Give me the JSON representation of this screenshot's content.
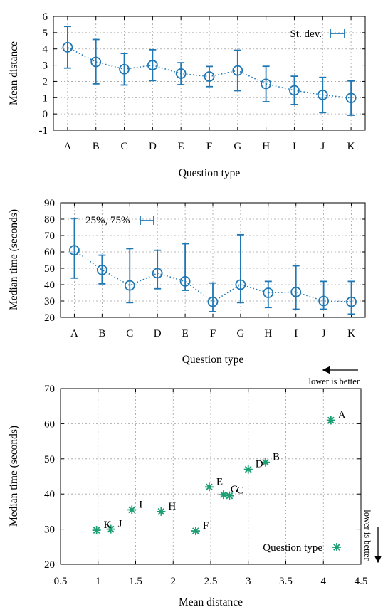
{
  "colors": {
    "series_blue": "#1f77b4",
    "scatter_green": "#1a9e72"
  },
  "chart_data": [
    {
      "type": "line",
      "xlabel": "Question type",
      "ylabel": "Mean distance",
      "categories": [
        "A",
        "B",
        "C",
        "D",
        "E",
        "F",
        "G",
        "H",
        "I",
        "J",
        "K"
      ],
      "series": [
        {
          "values": [
            4.1,
            3.2,
            2.75,
            3.0,
            2.48,
            2.3,
            2.67,
            1.85,
            1.45,
            1.17,
            0.98
          ],
          "err_low": [
            2.82,
            1.85,
            1.78,
            2.05,
            1.8,
            1.68,
            1.43,
            0.75,
            0.58,
            0.08,
            -0.08
          ],
          "err_high": [
            5.38,
            4.58,
            3.72,
            3.95,
            3.15,
            2.92,
            3.92,
            2.93,
            2.32,
            2.25,
            2.03
          ]
        }
      ],
      "legend": "St. dev.",
      "legend_position": "top-right",
      "ylim": [
        -1,
        6
      ],
      "yticks": [
        -1,
        0,
        1,
        2,
        3,
        4,
        5,
        6
      ],
      "grid": true
    },
    {
      "type": "line",
      "xlabel": "Question type",
      "ylabel": "Median time (seconds)",
      "categories": [
        "A",
        "B",
        "C",
        "D",
        "E",
        "F",
        "G",
        "H",
        "I",
        "J",
        "K"
      ],
      "series": [
        {
          "values": [
            61,
            49,
            39.5,
            47,
            42,
            29.5,
            40,
            35,
            35.5,
            30,
            29.5
          ],
          "err_low": [
            44,
            40.5,
            29,
            37.5,
            36.5,
            23.5,
            29,
            26,
            25,
            25,
            22
          ],
          "err_high": [
            80.5,
            58,
            62,
            61,
            65,
            41,
            70.5,
            42,
            51.5,
            42,
            42
          ]
        }
      ],
      "legend": "25%, 75%",
      "legend_position": "top-left",
      "ylim": [
        20,
        90
      ],
      "yticks": [
        20,
        30,
        40,
        50,
        60,
        70,
        80,
        90
      ],
      "grid": true
    },
    {
      "type": "scatter",
      "xlabel": "Mean distance",
      "ylabel": "Median time (seconds)",
      "xlim": [
        0.5,
        4.5
      ],
      "ylim": [
        20,
        70
      ],
      "xticks": [
        0.5,
        1,
        1.5,
        2,
        2.5,
        3,
        3.5,
        4,
        4.5
      ],
      "xtick_labels": [
        "0.5",
        "1",
        "1.5",
        "2",
        "2.5",
        "3",
        "3.5",
        "4",
        "4.5"
      ],
      "yticks": [
        20,
        30,
        40,
        50,
        60,
        70
      ],
      "grid": true,
      "legend": "Question type",
      "legend_position": "bottom-right",
      "points": [
        {
          "label": "A",
          "x": 4.1,
          "y": 61
        },
        {
          "label": "B",
          "x": 3.23,
          "y": 49
        },
        {
          "label": "C",
          "x": 2.75,
          "y": 39.5
        },
        {
          "label": "D",
          "x": 3.0,
          "y": 47
        },
        {
          "label": "E",
          "x": 2.48,
          "y": 42
        },
        {
          "label": "F",
          "x": 2.3,
          "y": 29.5
        },
        {
          "label": "G",
          "x": 2.67,
          "y": 39.8
        },
        {
          "label": "H",
          "x": 1.84,
          "y": 35
        },
        {
          "label": "I",
          "x": 1.45,
          "y": 35.5
        },
        {
          "label": "J",
          "x": 1.17,
          "y": 30
        },
        {
          "label": "K",
          "x": 0.98,
          "y": 29.7
        }
      ],
      "annotations": {
        "x_direction": "lower is better",
        "y_direction": "lower is better"
      }
    }
  ]
}
